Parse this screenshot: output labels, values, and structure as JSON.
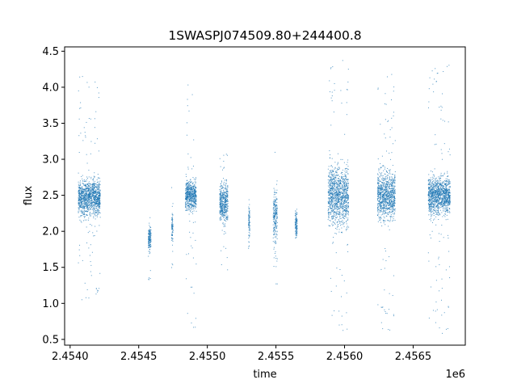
{
  "chart_data": {
    "type": "scatter",
    "title": "1SWASPJ074509.80+244400.8",
    "xlabel": "time",
    "ylabel": "flux",
    "x_offset_label": "1e6",
    "xlim": [
      2453960,
      2456880
    ],
    "ylim": [
      0.42,
      4.56
    ],
    "x_ticks": [
      2454000,
      2454500,
      2455000,
      2455500,
      2456000,
      2456500
    ],
    "x_tick_labels": [
      "2.4540",
      "2.4545",
      "2.4550",
      "2.4555",
      "2.4560",
      "2.4565"
    ],
    "y_ticks": [
      0.5,
      1.0,
      1.5,
      2.0,
      2.5,
      3.0,
      3.5,
      4.0,
      4.5
    ],
    "y_tick_labels": [
      "0.5",
      "1.0",
      "1.5",
      "2.0",
      "2.5",
      "3.0",
      "3.5",
      "4.0",
      "4.5"
    ],
    "grid": false,
    "legend": "none",
    "marker_color": "#1f77b4",
    "seasons": [
      {
        "x_start": 2454060,
        "x_end": 2454220,
        "median_flux": 2.47,
        "flux_min": 1.05,
        "flux_max": 4.18,
        "dense_min": 2.1,
        "dense_max": 2.85
      },
      {
        "x_start": 2454570,
        "x_end": 2454590,
        "median_flux": 1.9,
        "flux_min": 1.25,
        "flux_max": 2.2,
        "dense_min": 1.6,
        "dense_max": 2.1
      },
      {
        "x_start": 2454740,
        "x_end": 2454750,
        "median_flux": 2.05,
        "flux_min": 1.45,
        "flux_max": 2.8,
        "dense_min": 1.8,
        "dense_max": 2.4
      },
      {
        "x_start": 2454840,
        "x_end": 2454920,
        "median_flux": 2.5,
        "flux_min": 0.62,
        "flux_max": 4.08,
        "dense_min": 2.2,
        "dense_max": 2.8
      },
      {
        "x_start": 2455090,
        "x_end": 2455150,
        "median_flux": 2.4,
        "flux_min": 1.45,
        "flux_max": 3.12,
        "dense_min": 2.0,
        "dense_max": 2.8
      },
      {
        "x_start": 2455300,
        "x_end": 2455310,
        "median_flux": 2.15,
        "flux_min": 1.45,
        "flux_max": 2.55,
        "dense_min": 1.8,
        "dense_max": 2.5
      },
      {
        "x_start": 2455480,
        "x_end": 2455510,
        "median_flux": 2.2,
        "flux_min": 1.25,
        "flux_max": 3.1,
        "dense_min": 1.6,
        "dense_max": 2.7
      },
      {
        "x_start": 2455640,
        "x_end": 2455655,
        "median_flux": 2.1,
        "flux_min": 1.5,
        "flux_max": 2.38,
        "dense_min": 1.8,
        "dense_max": 2.35
      },
      {
        "x_start": 2455880,
        "x_end": 2456030,
        "median_flux": 2.5,
        "flux_min": 0.57,
        "flux_max": 4.38,
        "dense_min": 1.9,
        "dense_max": 3.1
      },
      {
        "x_start": 2456240,
        "x_end": 2456370,
        "median_flux": 2.5,
        "flux_min": 0.58,
        "flux_max": 4.3,
        "dense_min": 2.0,
        "dense_max": 3.0
      },
      {
        "x_start": 2456610,
        "x_end": 2456770,
        "median_flux": 2.5,
        "flux_min": 0.57,
        "flux_max": 4.32,
        "dense_min": 2.1,
        "dense_max": 2.9
      }
    ]
  }
}
